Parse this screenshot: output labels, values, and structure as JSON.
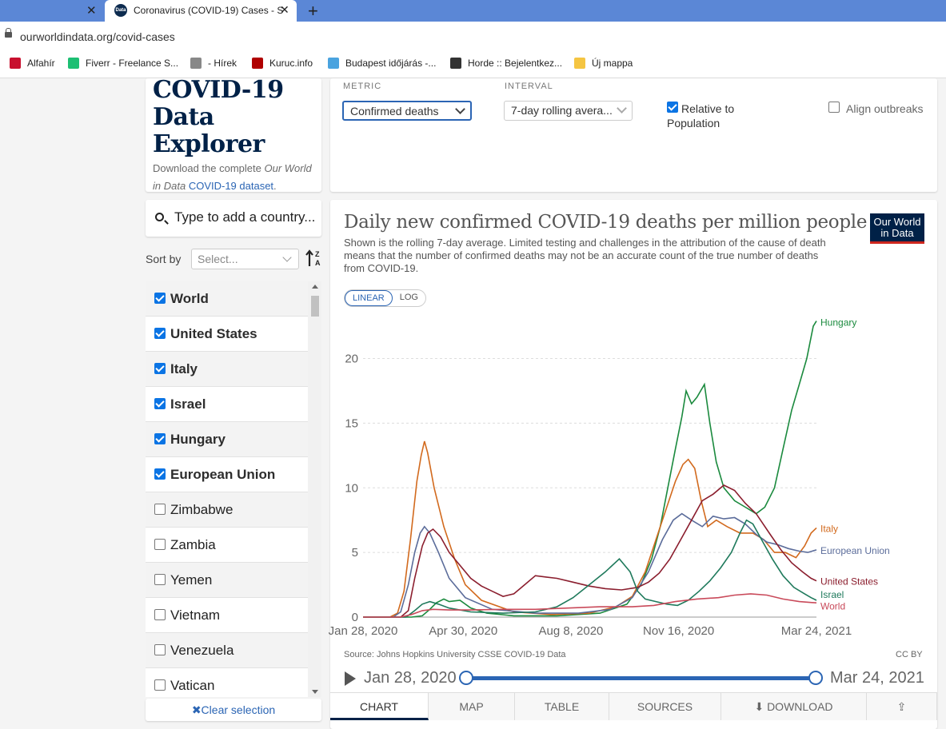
{
  "browser": {
    "active_tab_title": "Coronavirus (COVID-19) Cases - S",
    "favicon_text": "Data",
    "url": "ourworldindata.org/covid-cases",
    "bookmarks": [
      {
        "label": "Alfahír",
        "color": "#c8102e"
      },
      {
        "label": "Fiverr - Freelance S...",
        "color": "#1dbf73"
      },
      {
        "label": "- Hírek",
        "color": "#888888"
      },
      {
        "label": "Kuruc.info",
        "color": "#b00000"
      },
      {
        "label": "Budapest időjárás -...",
        "color": "#4aa3df"
      },
      {
        "label": "Horde :: Bejelentkez...",
        "color": "#333333"
      },
      {
        "label": "Új mappa",
        "color": "#f5c542"
      }
    ]
  },
  "explorer": {
    "title": "COVID-19 Data Explorer",
    "sub_pre": "Download the complete ",
    "sub_italic": "Our World in Data",
    "sub_link": "COVID-19 dataset",
    "sub_post": "."
  },
  "controls": {
    "metric_label": "METRIC",
    "metric_value": "Confirmed deaths",
    "interval_label": "INTERVAL",
    "interval_value": "7-day rolling avera...",
    "relative_label": "Relative to Population",
    "relative_checked": true,
    "align_label": "Align outbreaks",
    "align_checked": false
  },
  "search": {
    "placeholder": "Type to add a country..."
  },
  "sort": {
    "label": "Sort by",
    "placeholder": "Select..."
  },
  "countries": [
    {
      "name": "World",
      "checked": true
    },
    {
      "name": "United States",
      "checked": true
    },
    {
      "name": "Italy",
      "checked": true
    },
    {
      "name": "Israel",
      "checked": true
    },
    {
      "name": "Hungary",
      "checked": true
    },
    {
      "name": "European Union",
      "checked": true
    },
    {
      "name": "Zimbabwe",
      "checked": false
    },
    {
      "name": "Zambia",
      "checked": false
    },
    {
      "name": "Yemen",
      "checked": false
    },
    {
      "name": "Vietnam",
      "checked": false
    },
    {
      "name": "Venezuela",
      "checked": false
    },
    {
      "name": "Vatican",
      "checked": false
    }
  ],
  "clear_selection": "✖Clear selection",
  "chart": {
    "title": "Daily new confirmed COVID-19 deaths per million people",
    "subtitle": "Shown is the rolling 7-day average. Limited testing and challenges in the attribution of the cause of death means that the number of confirmed deaths may not be an accurate count of the true number of deaths from COVID-19.",
    "logo": "Our World in Data",
    "scale_linear": "LINEAR",
    "scale_log": "LOG",
    "source": "Source: Johns Hopkins University CSSE COVID-19 Data",
    "license": "CC BY",
    "timeline_start": "Jan 28, 2020",
    "timeline_end": "Mar 24, 2021",
    "tabs": [
      "CHART",
      "MAP",
      "TABLE",
      "SOURCES",
      "⬇ DOWNLOAD",
      "⇪"
    ]
  },
  "chart_data": {
    "type": "line",
    "title": "Daily new confirmed COVID-19 deaths per million people",
    "x_tick_labels": [
      "Jan 28, 2020",
      "Apr 30, 2020",
      "Aug 8, 2020",
      "Nov 16, 2020",
      "Mar 24, 2021"
    ],
    "x_tick_days": [
      0,
      93,
      193,
      293,
      421
    ],
    "ylim": [
      0,
      23
    ],
    "y_ticks": [
      0,
      5,
      10,
      15,
      20
    ],
    "grid": "horizontal dashed",
    "series": [
      {
        "name": "Hungary",
        "color": "#1b8a3e",
        "points": [
          [
            0,
            0
          ],
          [
            45,
            0
          ],
          [
            55,
            0.1
          ],
          [
            62,
            0.6
          ],
          [
            68,
            1.1
          ],
          [
            75,
            1.4
          ],
          [
            80,
            1.2
          ],
          [
            90,
            1.3
          ],
          [
            100,
            0.7
          ],
          [
            115,
            0.3
          ],
          [
            140,
            0.1
          ],
          [
            180,
            0.1
          ],
          [
            220,
            0.3
          ],
          [
            245,
            1
          ],
          [
            258,
            2.5
          ],
          [
            268,
            4.5
          ],
          [
            276,
            7
          ],
          [
            283,
            10
          ],
          [
            290,
            13
          ],
          [
            296,
            15.5
          ],
          [
            300,
            17.5
          ],
          [
            305,
            16.5
          ],
          [
            310,
            17
          ],
          [
            317,
            18
          ],
          [
            322,
            15
          ],
          [
            328,
            12
          ],
          [
            335,
            10
          ],
          [
            345,
            9
          ],
          [
            355,
            8.5
          ],
          [
            365,
            8
          ],
          [
            373,
            8.5
          ],
          [
            382,
            10
          ],
          [
            390,
            13
          ],
          [
            398,
            16
          ],
          [
            405,
            18
          ],
          [
            412,
            20
          ],
          [
            418,
            22.5
          ],
          [
            421,
            22.9
          ]
        ]
      },
      {
        "name": "Italy",
        "color": "#d26a1e",
        "points": [
          [
            0,
            0
          ],
          [
            25,
            0
          ],
          [
            32,
            0.3
          ],
          [
            38,
            2
          ],
          [
            44,
            6
          ],
          [
            50,
            10.5
          ],
          [
            54,
            12.5
          ],
          [
            57,
            13.6
          ],
          [
            60,
            12.7
          ],
          [
            66,
            10
          ],
          [
            75,
            7
          ],
          [
            85,
            4.5
          ],
          [
            95,
            2.5
          ],
          [
            110,
            1.3
          ],
          [
            140,
            0.4
          ],
          [
            175,
            0.2
          ],
          [
            210,
            0.3
          ],
          [
            235,
            0.8
          ],
          [
            250,
            1.6
          ],
          [
            262,
            3.5
          ],
          [
            272,
            6
          ],
          [
            282,
            8.5
          ],
          [
            290,
            10.5
          ],
          [
            297,
            11.8
          ],
          [
            302,
            12.2
          ],
          [
            308,
            11.5
          ],
          [
            314,
            9
          ],
          [
            320,
            7
          ],
          [
            328,
            7.5
          ],
          [
            338,
            7
          ],
          [
            350,
            6.5
          ],
          [
            362,
            6.5
          ],
          [
            372,
            6
          ],
          [
            382,
            5
          ],
          [
            392,
            5
          ],
          [
            402,
            4.6
          ],
          [
            410,
            5.5
          ],
          [
            416,
            6.5
          ],
          [
            421,
            6.9
          ]
        ]
      },
      {
        "name": "European Union",
        "color": "#5b6c9a",
        "points": [
          [
            0,
            0
          ],
          [
            28,
            0
          ],
          [
            35,
            0.4
          ],
          [
            42,
            2.5
          ],
          [
            48,
            5
          ],
          [
            53,
            6.5
          ],
          [
            57,
            7
          ],
          [
            62,
            6.5
          ],
          [
            70,
            5
          ],
          [
            80,
            3
          ],
          [
            95,
            1.5
          ],
          [
            120,
            0.6
          ],
          [
            160,
            0.3
          ],
          [
            200,
            0.3
          ],
          [
            230,
            0.6
          ],
          [
            250,
            1.5
          ],
          [
            265,
            3.5
          ],
          [
            278,
            6
          ],
          [
            288,
            7.5
          ],
          [
            296,
            8
          ],
          [
            305,
            7.5
          ],
          [
            315,
            7
          ],
          [
            325,
            7.8
          ],
          [
            335,
            7.6
          ],
          [
            345,
            7.7
          ],
          [
            355,
            7.2
          ],
          [
            365,
            6.4
          ],
          [
            375,
            5.8
          ],
          [
            385,
            5.6
          ],
          [
            395,
            5.3
          ],
          [
            405,
            5.1
          ],
          [
            413,
            5
          ],
          [
            421,
            5.2
          ]
        ]
      },
      {
        "name": "United States",
        "color": "#8b1e2e",
        "points": [
          [
            0,
            0
          ],
          [
            35,
            0
          ],
          [
            42,
            0.5
          ],
          [
            48,
            3
          ],
          [
            55,
            5.5
          ],
          [
            60,
            6.5
          ],
          [
            65,
            6.8
          ],
          [
            72,
            6.2
          ],
          [
            80,
            5
          ],
          [
            90,
            4
          ],
          [
            100,
            3
          ],
          [
            110,
            2.4
          ],
          [
            120,
            2
          ],
          [
            130,
            1.6
          ],
          [
            140,
            1.8
          ],
          [
            150,
            2.5
          ],
          [
            160,
            3.2
          ],
          [
            170,
            3.1
          ],
          [
            180,
            3
          ],
          [
            195,
            2.7
          ],
          [
            210,
            2.4
          ],
          [
            225,
            2.2
          ],
          [
            240,
            2.1
          ],
          [
            255,
            2.3
          ],
          [
            265,
            2.7
          ],
          [
            275,
            3.4
          ],
          [
            285,
            4.5
          ],
          [
            295,
            6
          ],
          [
            305,
            7.5
          ],
          [
            315,
            9
          ],
          [
            325,
            9.5
          ],
          [
            335,
            10.2
          ],
          [
            345,
            9.8
          ],
          [
            355,
            8.8
          ],
          [
            365,
            8
          ],
          [
            378,
            6.4
          ],
          [
            388,
            5.2
          ],
          [
            398,
            4.2
          ],
          [
            408,
            3.5
          ],
          [
            416,
            3
          ],
          [
            421,
            2.8
          ]
        ]
      },
      {
        "name": "Israel",
        "color": "#1f7a5c",
        "points": [
          [
            0,
            0
          ],
          [
            40,
            0
          ],
          [
            48,
            0.5
          ],
          [
            55,
            1
          ],
          [
            62,
            1.2
          ],
          [
            70,
            1
          ],
          [
            80,
            0.7
          ],
          [
            100,
            0.4
          ],
          [
            130,
            0.3
          ],
          [
            160,
            0.4
          ],
          [
            180,
            0.8
          ],
          [
            195,
            1.5
          ],
          [
            210,
            2.5
          ],
          [
            225,
            3.5
          ],
          [
            238,
            4.5
          ],
          [
            248,
            3.5
          ],
          [
            255,
            2
          ],
          [
            262,
            1.4
          ],
          [
            272,
            1.2
          ],
          [
            282,
            1
          ],
          [
            292,
            0.9
          ],
          [
            302,
            1.3
          ],
          [
            312,
            2
          ],
          [
            322,
            2.8
          ],
          [
            332,
            3.8
          ],
          [
            342,
            5
          ],
          [
            350,
            6.5
          ],
          [
            356,
            7.5
          ],
          [
            362,
            7.2
          ],
          [
            370,
            6
          ],
          [
            380,
            4.5
          ],
          [
            390,
            3.2
          ],
          [
            400,
            2.3
          ],
          [
            410,
            1.8
          ],
          [
            416,
            1.5
          ],
          [
            421,
            1.3
          ]
        ]
      },
      {
        "name": "World",
        "color": "#c94a5a",
        "points": [
          [
            0,
            0
          ],
          [
            35,
            0
          ],
          [
            45,
            0.2
          ],
          [
            55,
            0.5
          ],
          [
            65,
            0.6
          ],
          [
            80,
            0.55
          ],
          [
            100,
            0.55
          ],
          [
            130,
            0.6
          ],
          [
            160,
            0.6
          ],
          [
            190,
            0.7
          ],
          [
            220,
            0.8
          ],
          [
            250,
            0.8
          ],
          [
            270,
            0.9
          ],
          [
            290,
            1.2
          ],
          [
            310,
            1.4
          ],
          [
            330,
            1.5
          ],
          [
            345,
            1.7
          ],
          [
            360,
            1.8
          ],
          [
            375,
            1.7
          ],
          [
            390,
            1.4
          ],
          [
            405,
            1.2
          ],
          [
            421,
            1.1
          ]
        ]
      }
    ]
  }
}
